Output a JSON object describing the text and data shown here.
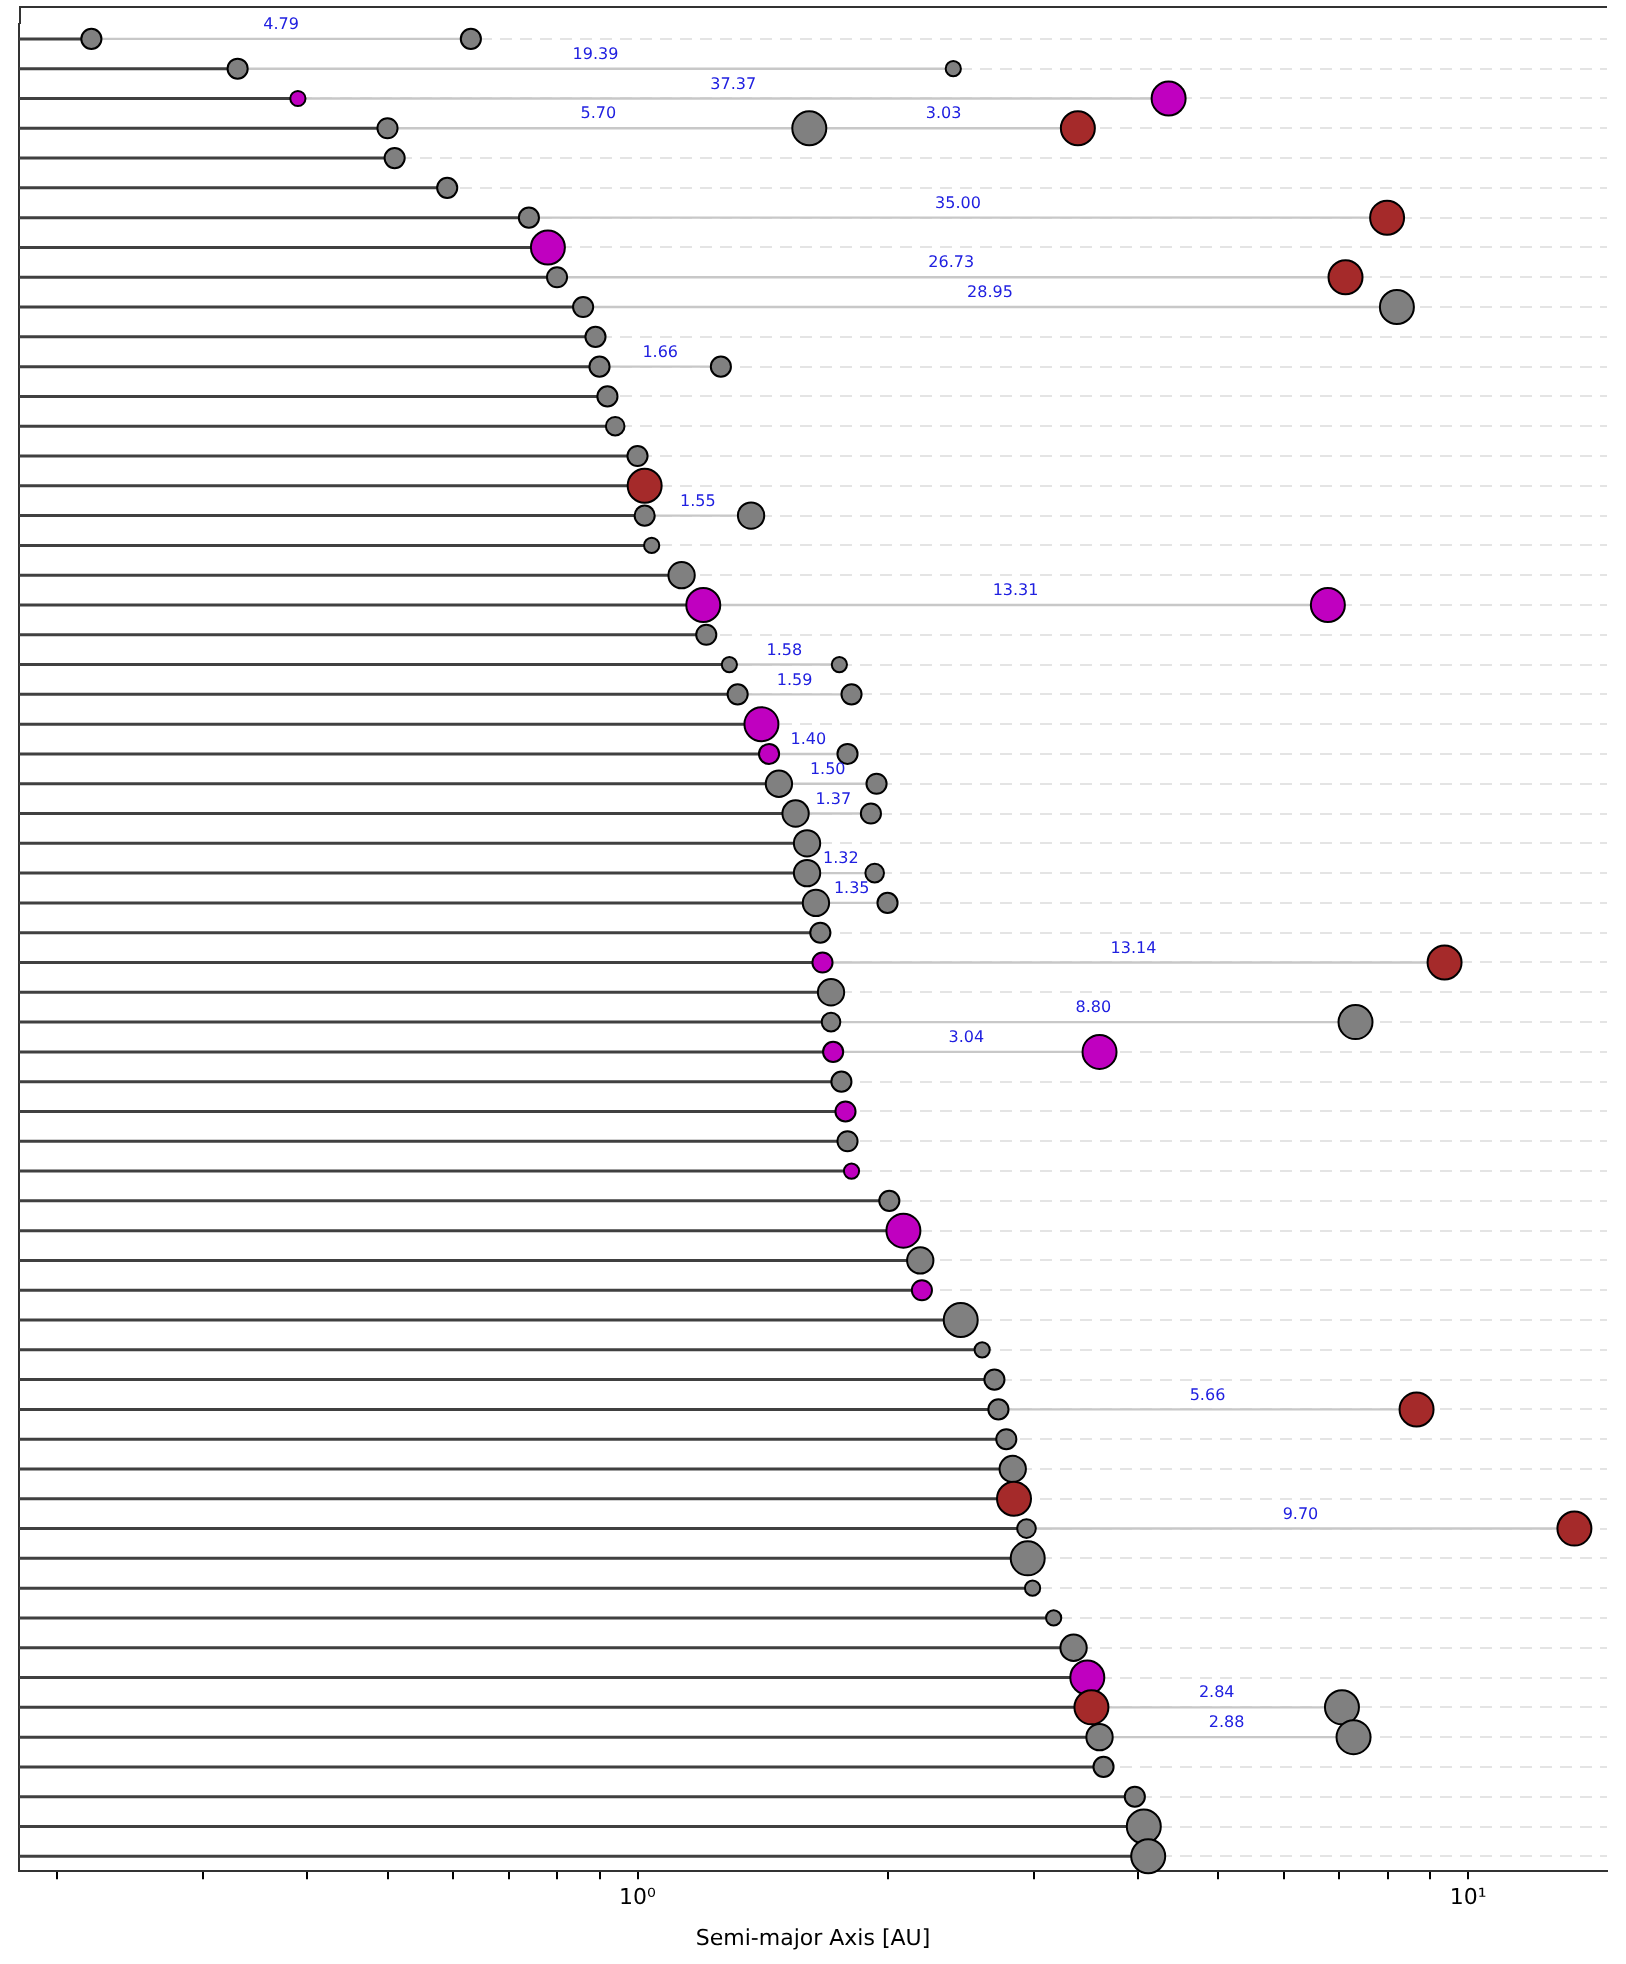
{
  "chart_data": {
    "type": "lollipop",
    "orientation": "horizontal",
    "xlabel": "Semi-major Axis [AU]",
    "log": "x",
    "grid": "y",
    "marker": "circle",
    "legend": false,
    "xlim": [
      0.18,
      14.7
    ],
    "xticks": [
      {
        "value": 0.2,
        "label": null
      },
      {
        "value": 0.3,
        "label": null
      },
      {
        "value": 0.4,
        "label": null
      },
      {
        "value": 0.5,
        "label": null
      },
      {
        "value": 0.6,
        "label": null
      },
      {
        "value": 0.7,
        "label": null
      },
      {
        "value": 0.8,
        "label": null
      },
      {
        "value": 0.9,
        "label": null
      },
      {
        "value": 1,
        "label": "10⁰"
      },
      {
        "value": 2,
        "label": null
      },
      {
        "value": 3,
        "label": null
      },
      {
        "value": 4,
        "label": null
      },
      {
        "value": 5,
        "label": null
      },
      {
        "value": 6,
        "label": null
      },
      {
        "value": 7,
        "label": null
      },
      {
        "value": 8,
        "label": null
      },
      {
        "value": 9,
        "label": null
      },
      {
        "value": 10,
        "label": "10¹"
      }
    ],
    "categories": [
      null,
      null,
      null,
      null,
      null,
      null,
      null,
      null,
      null,
      null,
      null,
      null,
      null,
      null,
      null,
      null,
      null,
      null,
      null,
      null,
      null,
      null,
      null,
      null,
      null,
      null,
      null,
      null,
      null,
      null,
      null,
      null,
      null,
      null,
      null,
      null,
      null,
      null,
      null,
      null,
      null,
      null,
      null,
      null,
      null,
      null,
      null,
      null,
      null,
      null,
      null,
      null,
      null,
      null,
      null,
      null,
      null,
      null,
      null,
      null,
      null,
      null
    ],
    "series": [
      {
        "values": [
          0.22,
          0.33,
          0.39,
          0.5,
          0.51,
          0.59,
          0.74,
          0.78,
          0.8,
          0.86,
          0.89,
          0.9,
          0.92,
          0.94,
          1.0,
          1.02,
          1.02,
          1.04,
          1.13,
          1.2,
          1.21,
          1.29,
          1.32,
          1.41,
          1.44,
          1.48,
          1.55,
          1.6,
          1.6,
          1.64,
          1.66,
          1.67,
          1.71,
          1.71,
          1.72,
          1.76,
          1.78,
          1.79,
          1.81,
          2.01,
          2.09,
          2.19,
          2.2,
          2.45,
          2.6,
          2.69,
          2.72,
          2.78,
          2.83,
          2.84,
          2.94,
          2.95,
          2.99,
          3.17,
          3.35,
          3.48,
          3.52,
          3.6,
          3.64,
          3.97,
          4.07,
          4.12
        ],
        "colors": [
          "#808080",
          "#808080",
          "#c000c0",
          "#808080",
          "#808080",
          "#808080",
          "#808080",
          "#c000c0",
          "#808080",
          "#808080",
          "#808080",
          "#808080",
          "#808080",
          "#808080",
          "#808080",
          "#a52a2a",
          "#808080",
          "#808080",
          "#808080",
          "#c000c0",
          "#808080",
          "#808080",
          "#808080",
          "#c000c0",
          "#c000c0",
          "#808080",
          "#808080",
          "#808080",
          "#808080",
          "#808080",
          "#808080",
          "#c000c0",
          "#808080",
          "#808080",
          "#c000c0",
          "#808080",
          "#c000c0",
          "#808080",
          "#c000c0",
          "#808080",
          "#c000c0",
          "#808080",
          "#c000c0",
          "#808080",
          "#808080",
          "#808080",
          "#808080",
          "#808080",
          "#808080",
          "#a52a2a",
          "#808080",
          "#808080",
          "#808080",
          "#808080",
          "#808080",
          "#c000c0",
          "#a52a2a",
          "#808080",
          "#808080",
          "#808080",
          "#808080",
          "#808080"
        ],
        "sizes": [
          0.35,
          0.35,
          0.2,
          0.35,
          0.35,
          0.35,
          0.35,
          1,
          0.35,
          0.35,
          0.35,
          0.35,
          0.35,
          0.3,
          0.35,
          1,
          0.35,
          0.2,
          0.6,
          1,
          0.35,
          0.2,
          0.35,
          1,
          0.35,
          0.6,
          0.6,
          0.6,
          0.6,
          0.6,
          0.35,
          0.35,
          0.6,
          0.3,
          0.35,
          0.35,
          0.35,
          0.35,
          0.2,
          0.35,
          1,
          0.6,
          0.35,
          1,
          0.2,
          0.35,
          0.35,
          0.35,
          0.6,
          1,
          0.3,
          1,
          0.2,
          0.2,
          0.6,
          1,
          1,
          0.6,
          0.35,
          0.35,
          1,
          1
        ]
      },
      {
        "type": "scatter",
        "values": [
          0.63,
          2.4,
          4.36,
          1.61,
          null,
          null,
          7.99,
          null,
          7.12,
          8.21,
          null,
          1.26,
          null,
          null,
          null,
          null,
          1.37,
          null,
          null,
          6.78,
          null,
          1.75,
          1.81,
          null,
          1.79,
          1.94,
          1.91,
          null,
          1.93,
          2.0,
          null,
          9.37,
          null,
          7.32,
          3.6,
          null,
          null,
          null,
          null,
          null,
          null,
          null,
          null,
          null,
          null,
          null,
          8.67,
          null,
          null,
          null,
          13.43,
          null,
          null,
          null,
          null,
          null,
          7.05,
          7.28,
          null,
          null,
          null,
          null
        ],
        "colors": [
          "#808080",
          "#808080",
          "#c000c0",
          "#808080",
          null,
          null,
          "#a52a2a",
          null,
          "#a52a2a",
          "#808080",
          null,
          "#808080",
          null,
          null,
          null,
          null,
          "#808080",
          null,
          null,
          "#c000c0",
          null,
          "#808080",
          "#808080",
          null,
          "#808080",
          "#808080",
          "#808080",
          null,
          "#808080",
          "#808080",
          null,
          "#a52a2a",
          null,
          "#808080",
          "#c000c0",
          null,
          null,
          null,
          null,
          null,
          null,
          null,
          null,
          null,
          null,
          null,
          "#a52a2a",
          null,
          null,
          null,
          "#a52a2a",
          null,
          null,
          null,
          null,
          null,
          "#808080",
          "#808080",
          null,
          null,
          null,
          null
        ],
        "sizes": [
          0.35,
          0.2,
          1,
          1,
          null,
          null,
          1,
          null,
          1,
          1,
          null,
          0.35,
          null,
          null,
          null,
          null,
          0.6,
          null,
          null,
          1,
          null,
          0.2,
          0.35,
          null,
          0.35,
          0.35,
          0.35,
          null,
          0.3,
          0.35,
          null,
          1,
          null,
          1,
          1,
          null,
          null,
          null,
          null,
          null,
          null,
          null,
          null,
          null,
          null,
          null,
          1,
          null,
          null,
          null,
          1,
          null,
          null,
          null,
          null,
          null,
          1,
          1,
          null,
          null,
          null,
          null
        ]
      },
      {
        "type": "scatter",
        "values": [
          null,
          null,
          null,
          3.39,
          null,
          null,
          null,
          null,
          null,
          null,
          null,
          null,
          null,
          null,
          null,
          null,
          null,
          null,
          null,
          null,
          null,
          null,
          null,
          null,
          null,
          null,
          null,
          null,
          null,
          null,
          null,
          null,
          null,
          null,
          null,
          null,
          null,
          null,
          null,
          null,
          null,
          null,
          null,
          null,
          null,
          null,
          null,
          null,
          null,
          null,
          null,
          null,
          null,
          null,
          null,
          null,
          null,
          null,
          null,
          null,
          null,
          null
        ],
        "colors": [
          null,
          null,
          null,
          "#a52a2a",
          null,
          null,
          null,
          null,
          null,
          null,
          null,
          null,
          null,
          null,
          null,
          null,
          null,
          null,
          null,
          null,
          null,
          null,
          null,
          null,
          null,
          null,
          null,
          null,
          null,
          null,
          null,
          null,
          null,
          null,
          null,
          null,
          null,
          null,
          null,
          null,
          null,
          null,
          null,
          null,
          null,
          null,
          null,
          null,
          null,
          null,
          null,
          null,
          null,
          null,
          null,
          null,
          null,
          null,
          null,
          null,
          null,
          null
        ],
        "sizes": [
          null,
          null,
          null,
          1,
          null,
          null,
          null,
          null,
          null,
          null,
          null,
          null,
          null,
          null,
          null,
          null,
          null,
          null,
          null,
          null,
          null,
          null,
          null,
          null,
          null,
          null,
          null,
          null,
          null,
          null,
          null,
          null,
          null,
          null,
          null,
          null,
          null,
          null,
          null,
          null,
          null,
          null,
          null,
          null,
          null,
          null,
          null,
          null,
          null,
          null,
          null,
          null,
          null,
          null,
          null,
          null,
          null,
          null,
          null,
          null,
          null,
          null
        ]
      }
    ],
    "annotations": [
      "4.79",
      "19.39",
      "37.37",
      "5.70",
      "3.03",
      "35.00",
      "26.73",
      "28.95",
      "1.66",
      "1.55",
      "13.31",
      "1.58",
      "1.59",
      "1.40",
      "1.50",
      "1.37",
      "1.32",
      "1.35",
      "13.14",
      "8.80",
      "3.04",
      "5.66",
      "9.70",
      "2.84",
      "2.88"
    ]
  }
}
